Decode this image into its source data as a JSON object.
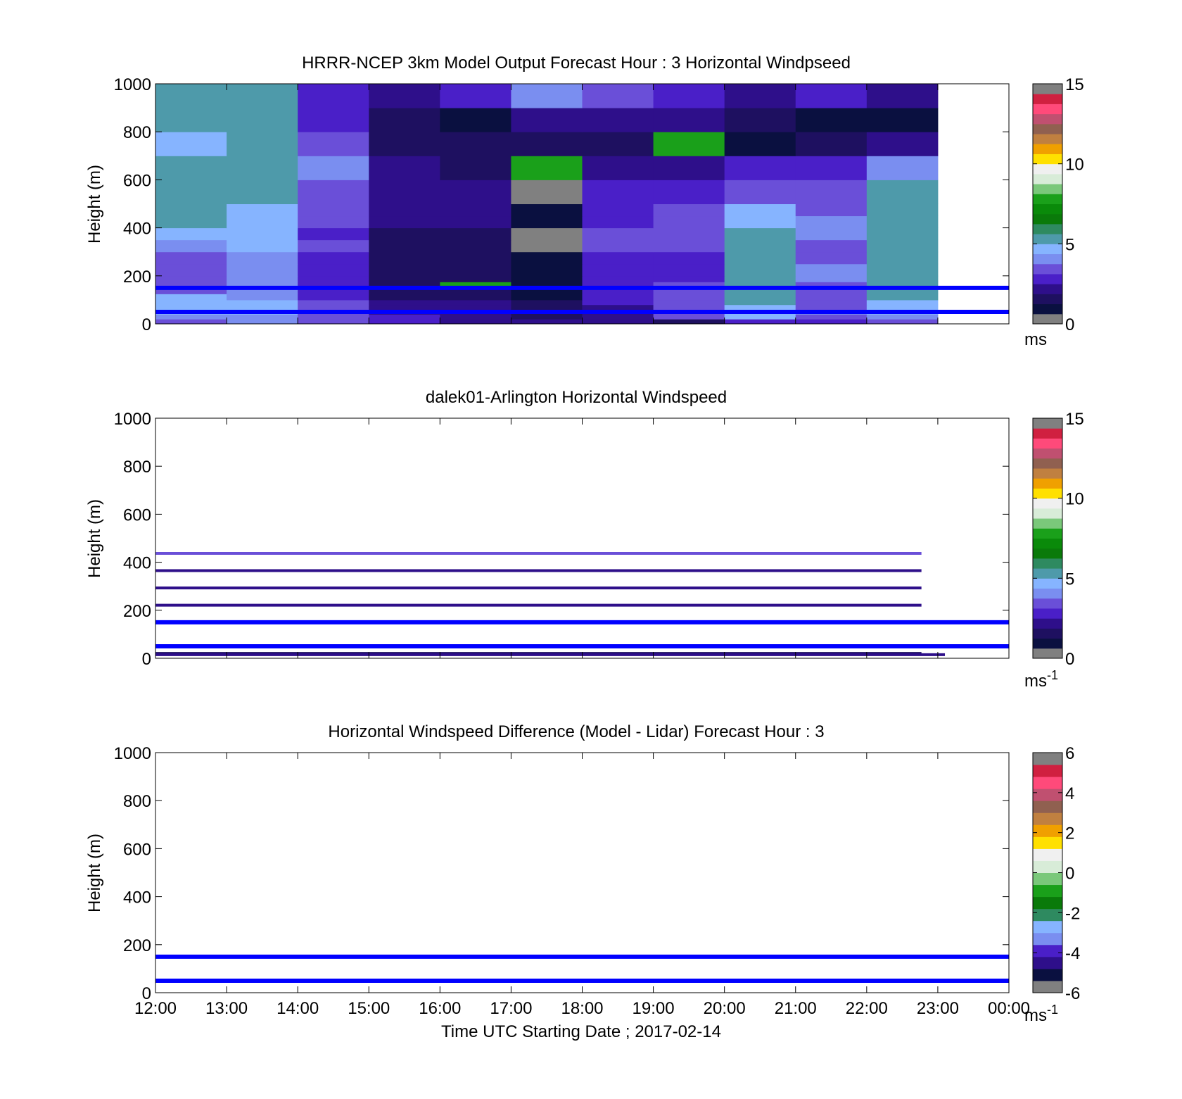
{
  "charts": [
    {
      "title": "HRRR-NCEP 3km Model Output   Forecast Hour : 3 Horizontal Windpseed",
      "ylabel": "Height (m)",
      "colorbar_unit": "ms",
      "colorbar_sup": ""
    },
    {
      "title": "dalek01-Arlington  Horizontal Windspeed",
      "ylabel": "Height (m)",
      "colorbar_unit": "ms",
      "colorbar_sup": "-1"
    },
    {
      "title": "Horizontal Windspeed Difference (Model - Lidar) Forecast Hour : 3",
      "ylabel": "Height (m)",
      "colorbar_unit": "ms",
      "colorbar_sup": "-1"
    }
  ],
  "xlabel": "Time UTC  Starting Date ; 2017-02-14",
  "colors": {
    "reference_line": "#0000ff",
    "windspeed_colormap": [
      "#808080",
      "#0a1040",
      "#1e1060",
      "#2e0f8a",
      "#4a1fc8",
      "#6a4fd8",
      "#7a8ef0",
      "#86b4ff",
      "#4e9aaa",
      "#2e8a60",
      "#0a7a0a",
      "#0a8a0a",
      "#1aa01a",
      "#7ac87a",
      "#d8ecd8",
      "#f0f0f0",
      "#ffe000",
      "#f0a000",
      "#c08040",
      "#906050",
      "#c05070",
      "#ff4a7a",
      "#d02040",
      "#808080"
    ],
    "difference_colormap": [
      "#808080",
      "#0a1040",
      "#2e0f8a",
      "#4a1fc8",
      "#7a8ef0",
      "#86b4ff",
      "#2e8a60",
      "#0a7a0a",
      "#1aa01a",
      "#7ac87a",
      "#d8ecd8",
      "#f0f0f0",
      "#ffe000",
      "#f0a000",
      "#c08040",
      "#906050",
      "#c05070",
      "#ff4a7a",
      "#d02040",
      "#808080"
    ]
  },
  "chart_data": [
    {
      "type": "heatmap",
      "title": "HRRR-NCEP 3km Model Output   Forecast Hour : 3 Horizontal Windpseed",
      "xlabel": "",
      "ylabel": "Height (m)",
      "x_ticks": [
        "12:00",
        "13:00",
        "14:00",
        "15:00",
        "16:00",
        "17:00",
        "18:00",
        "19:00",
        "20:00",
        "21:00",
        "22:00",
        "23:00",
        "00:00"
      ],
      "x_tick_labels_visible": false,
      "xlim_hours": [
        12,
        24
      ],
      "ylim": [
        0,
        1000
      ],
      "y_ticks": [
        0,
        200,
        400,
        600,
        800,
        1000
      ],
      "colorbar": {
        "min": 0,
        "max": 15,
        "ticks": [
          0,
          5,
          10,
          15
        ],
        "unit": "ms"
      },
      "reference_lines_m": [
        150,
        50
      ],
      "columns_hours_start": [
        12,
        13,
        14,
        15,
        16,
        17,
        18,
        19,
        20,
        21,
        22
      ],
      "column_width_hours": 1,
      "z_levels_m": [
        0,
        20,
        40,
        60,
        80,
        100,
        125,
        150,
        175,
        200,
        250,
        300,
        350,
        400,
        450,
        500,
        600,
        700,
        800,
        900,
        1000
      ],
      "values_ms": [
        [
          3.6,
          3.8,
          3.2,
          3.0,
          2.3,
          2.2,
          2.4,
          1.8,
          2.6,
          3.0,
          3.4
        ],
        [
          3.8,
          3.9,
          3.3,
          2.6,
          2.2,
          1.8,
          2.3,
          3.2,
          4.6,
          3.6,
          3.8
        ],
        [
          4.5,
          4.4,
          3.4,
          2.4,
          2.1,
          1.6,
          2.2,
          3.3,
          4.8,
          3.8,
          4.7
        ],
        [
          4.8,
          4.6,
          3.5,
          2.2,
          2.0,
          1.5,
          2.1,
          3.4,
          4.9,
          3.6,
          4.8
        ],
        [
          4.9,
          4.8,
          3.3,
          2.0,
          1.9,
          1.4,
          2.6,
          3.5,
          5.0,
          3.4,
          4.9
        ],
        [
          4.4,
          4.2,
          3.1,
          1.8,
          1.7,
          1.2,
          2.7,
          3.4,
          5.0,
          3.3,
          5.0
        ],
        [
          3.5,
          4.0,
          3.0,
          1.6,
          1.6,
          1.1,
          2.6,
          3.3,
          5.0,
          3.5,
          5.0
        ],
        [
          3.2,
          3.9,
          2.9,
          1.5,
          8.0,
          1.0,
          2.7,
          3.2,
          5.0,
          3.7,
          5.0
        ],
        [
          3.3,
          3.9,
          2.9,
          1.4,
          1.5,
          0.9,
          2.8,
          3.1,
          5.0,
          3.9,
          5.0
        ],
        [
          3.4,
          3.8,
          2.9,
          1.3,
          1.4,
          0.8,
          2.9,
          3.1,
          5.0,
          4.0,
          5.0
        ],
        [
          3.6,
          4.1,
          3.0,
          1.4,
          1.4,
          0.7,
          3.0,
          3.0,
          5.0,
          3.2,
          5.0
        ],
        [
          4.2,
          4.4,
          3.2,
          1.6,
          1.5,
          0.6,
          3.2,
          3.6,
          5.0,
          3.2,
          5.0
        ],
        [
          4.9,
          4.6,
          3.1,
          1.8,
          1.7,
          0.6,
          3.2,
          3.6,
          5.0,
          3.8,
          5.0
        ],
        [
          5.1,
          4.8,
          3.6,
          2.1,
          1.9,
          0.7,
          3.1,
          3.6,
          4.9,
          3.9,
          5.2
        ],
        [
          5.2,
          4.9,
          3.6,
          2.2,
          2.0,
          0.8,
          2.9,
          3.6,
          4.7,
          3.2,
          5.1
        ],
        [
          5.1,
          5.0,
          3.7,
          2.3,
          2.1,
          0.6,
          2.5,
          2.6,
          3.7,
          3.2,
          5.0
        ],
        [
          5.0,
          5.1,
          3.8,
          2.1,
          1.8,
          8.0,
          2.0,
          1.9,
          2.6,
          2.7,
          4.2
        ],
        [
          4.9,
          5.1,
          3.2,
          1.5,
          1.4,
          1.4,
          1.6,
          8.0,
          1.0,
          1.4,
          2.2
        ],
        [
          5.0,
          5.2,
          2.9,
          1.5,
          1.2,
          2.2,
          2.2,
          1.9,
          1.3,
          1.2,
          0.7
        ],
        [
          5.1,
          5.3,
          3.0,
          2.3,
          2.6,
          4.2,
          3.6,
          2.8,
          2.2,
          2.9,
          2.2
        ]
      ]
    },
    {
      "type": "heatmap",
      "title": "dalek01-Arlington  Horizontal Windspeed",
      "xlabel": "",
      "ylabel": "Height (m)",
      "x_ticks": [
        "12:00",
        "13:00",
        "14:00",
        "15:00",
        "16:00",
        "17:00",
        "18:00",
        "19:00",
        "20:00",
        "21:00",
        "22:00",
        "23:00",
        "00:00"
      ],
      "x_tick_labels_visible": false,
      "xlim_hours": [
        12,
        24
      ],
      "ylim": [
        0,
        1000
      ],
      "y_ticks": [
        0,
        200,
        400,
        600,
        800,
        1000
      ],
      "colorbar": {
        "min": 0,
        "max": 15,
        "ticks": [
          0,
          5,
          10,
          15
        ],
        "unit": "ms-1"
      },
      "reference_lines_m": [
        150,
        50
      ],
      "lidar_lines": [
        {
          "height_m": 437,
          "x_end_hours": 22.77,
          "value_ms": 3.2
        },
        {
          "height_m": 365,
          "x_end_hours": 22.77,
          "value_ms": 2.4
        },
        {
          "height_m": 293,
          "x_end_hours": 22.77,
          "value_ms": 2.1
        },
        {
          "height_m": 221,
          "x_end_hours": 22.77,
          "value_ms": 2.0
        },
        {
          "height_m": 20,
          "x_end_hours": 22.77,
          "value_ms": 1.4
        },
        {
          "height_m": 15,
          "x_end_hours": 23.1,
          "value_ms": 2.3
        }
      ]
    },
    {
      "type": "heatmap",
      "title": "Horizontal Windspeed Difference (Model - Lidar) Forecast Hour : 3",
      "xlabel": "Time UTC  Starting Date ; 2017-02-14",
      "ylabel": "Height (m)",
      "x_ticks": [
        "12:00",
        "13:00",
        "14:00",
        "15:00",
        "16:00",
        "17:00",
        "18:00",
        "19:00",
        "20:00",
        "21:00",
        "22:00",
        "23:00",
        "00:00"
      ],
      "x_tick_labels_visible": true,
      "xlim_hours": [
        12,
        24
      ],
      "ylim": [
        0,
        1000
      ],
      "y_ticks": [
        0,
        200,
        400,
        600,
        800,
        1000
      ],
      "colorbar": {
        "min": -6,
        "max": 6,
        "ticks": [
          -6,
          -4,
          -2,
          0,
          2,
          4,
          6
        ],
        "unit": "ms-1"
      },
      "reference_lines_m": [
        150,
        50
      ]
    }
  ]
}
